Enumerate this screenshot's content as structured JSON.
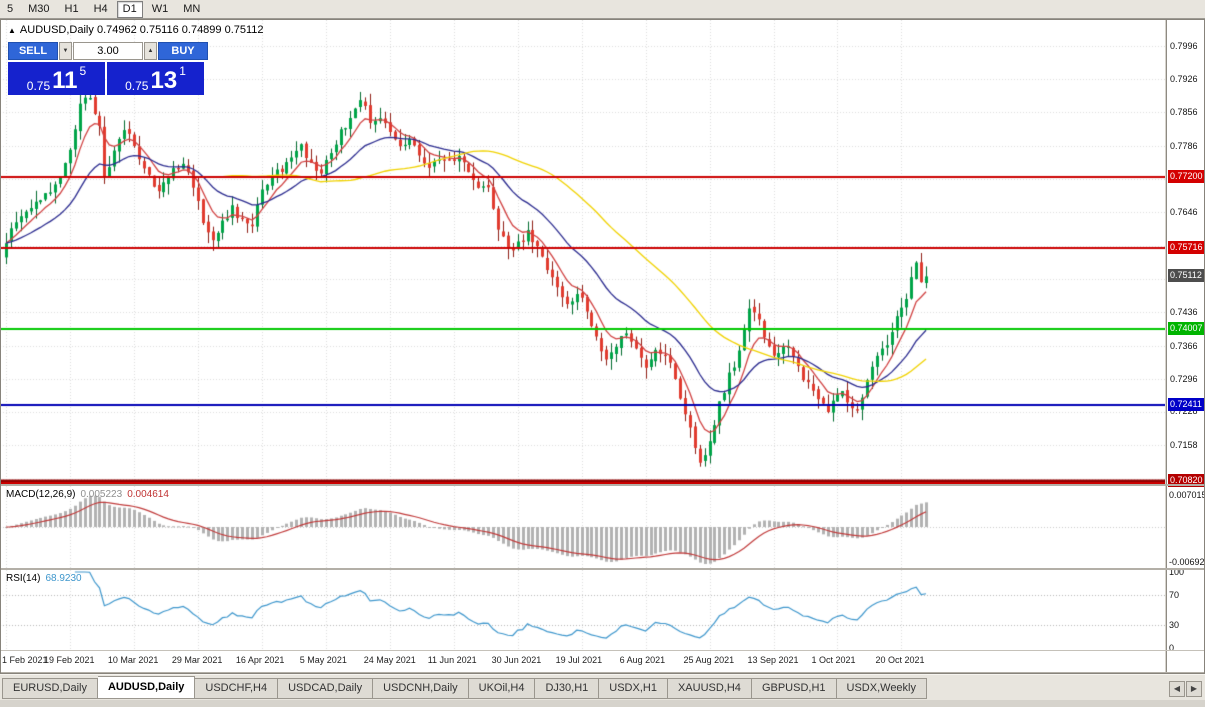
{
  "toolbar": {
    "timeframes": [
      {
        "label": "5",
        "active": false
      },
      {
        "label": "M30",
        "active": false
      },
      {
        "label": "H1",
        "active": false
      },
      {
        "label": "H4",
        "active": false
      },
      {
        "label": "D1",
        "active": true
      },
      {
        "label": "W1",
        "active": false
      },
      {
        "label": "MN",
        "active": false
      }
    ]
  },
  "chart_header": {
    "collapse_icon": "▲",
    "symbol_period": "AUDUSD,Daily",
    "ohlc": "0.74962 0.75116 0.74899 0.75112"
  },
  "one_click": {
    "sell_label": "SELL",
    "buy_label": "BUY",
    "volume": "3.00",
    "volume_down_icon": "▼",
    "volume_up_icon": "▲",
    "sell_price": {
      "prefix": "0.75",
      "big": "11",
      "sup": "5"
    },
    "buy_price": {
      "prefix": "0.75",
      "big": "13",
      "sup": "1"
    }
  },
  "indicator_labels": {
    "macd_name": "MACD(12,26,9)",
    "macd_main_value": "0.005223",
    "macd_signal_value": "0.004614",
    "macd_axis_top": "0.007015",
    "macd_axis_bottom": "-0.00692",
    "rsi_name": "RSI(14)",
    "rsi_value": "68.9230"
  },
  "rsi_axis": [
    {
      "label": "100",
      "value": 100
    },
    {
      "label": "70",
      "value": 70
    },
    {
      "label": "30",
      "value": 30
    },
    {
      "label": "0",
      "value": 0
    }
  ],
  "tabs": [
    {
      "label": "EURUSD,Daily",
      "active": false
    },
    {
      "label": "AUDUSD,Daily",
      "active": true
    },
    {
      "label": "USDCHF,H4",
      "active": false
    },
    {
      "label": "USDCAD,Daily",
      "active": false
    },
    {
      "label": "USDCNH,Daily",
      "active": false
    },
    {
      "label": "UKOil,H4",
      "active": false
    },
    {
      "label": "DJ30,H1",
      "active": false
    },
    {
      "label": "USDX,H1",
      "active": false
    },
    {
      "label": "XAUUSD,H4",
      "active": false
    },
    {
      "label": "GBPUSD,H1",
      "active": false
    },
    {
      "label": "USDX,Weekly",
      "active": false
    }
  ],
  "tab_scroll": {
    "left": "◀",
    "right": "▶"
  },
  "colors": {
    "up": "#00a448",
    "up_dark": "#006b2d",
    "down": "#e13b2f",
    "down_dark": "#8f1d14",
    "ma_fast": "#d04040",
    "ma_mid": "#2b2b8f",
    "ma_slow": "#f0d200",
    "grid": "#dcdcdc",
    "macd_hist": "#b2b2b2",
    "macd_signal": "#c03a3a",
    "rsi_line": "#3d96cc",
    "buy_sell_btn": "#2f66d8",
    "price_box": "#1522cd"
  },
  "chart_data": {
    "type": "candlestick",
    "symbol": "AUDUSD",
    "timeframe": "Daily",
    "title": "AUDUSD,Daily 0.74962 0.75116 0.74899 0.75112",
    "price_range": {
      "top": 0.805,
      "bottom": 0.7075
    },
    "candle_count": 188,
    "close_anchors": [
      [
        0,
        0.759
      ],
      [
        3,
        0.7645
      ],
      [
        6,
        0.7662
      ],
      [
        9,
        0.7685
      ],
      [
        12,
        0.7745
      ],
      [
        15,
        0.7868
      ],
      [
        17,
        0.7892
      ],
      [
        18,
        0.786
      ],
      [
        19,
        0.7828
      ],
      [
        20,
        0.7712
      ],
      [
        22,
        0.7772
      ],
      [
        24,
        0.7822
      ],
      [
        26,
        0.779
      ],
      [
        28,
        0.7735
      ],
      [
        31,
        0.7692
      ],
      [
        33,
        0.7722
      ],
      [
        36,
        0.7752
      ],
      [
        38,
        0.7702
      ],
      [
        40,
        0.7622
      ],
      [
        42,
        0.7592
      ],
      [
        44,
        0.7625
      ],
      [
        46,
        0.7652
      ],
      [
        48,
        0.7632
      ],
      [
        50,
        0.7612
      ],
      [
        52,
        0.7702
      ],
      [
        55,
        0.7732
      ],
      [
        58,
        0.7755
      ],
      [
        60,
        0.7782
      ],
      [
        62,
        0.7748
      ],
      [
        64,
        0.7722
      ],
      [
        66,
        0.7772
      ],
      [
        68,
        0.7818
      ],
      [
        70,
        0.7842
      ],
      [
        72,
        0.789
      ],
      [
        74,
        0.7832
      ],
      [
        76,
        0.7852
      ],
      [
        78,
        0.7812
      ],
      [
        80,
        0.7782
      ],
      [
        82,
        0.7802
      ],
      [
        84,
        0.7768
      ],
      [
        86,
        0.7742
      ],
      [
        88,
        0.7762
      ],
      [
        90,
        0.7748
      ],
      [
        92,
        0.7762
      ],
      [
        94,
        0.7738
      ],
      [
        96,
        0.7702
      ],
      [
        98,
        0.7692
      ],
      [
        100,
        0.7612
      ],
      [
        102,
        0.7562
      ],
      [
        104,
        0.7582
      ],
      [
        106,
        0.7602
      ],
      [
        108,
        0.7572
      ],
      [
        110,
        0.7522
      ],
      [
        112,
        0.7492
      ],
      [
        114,
        0.7452
      ],
      [
        116,
        0.7482
      ],
      [
        118,
        0.7442
      ],
      [
        120,
        0.7382
      ],
      [
        122,
        0.7342
      ],
      [
        124,
        0.7362
      ],
      [
        126,
        0.7396
      ],
      [
        128,
        0.7352
      ],
      [
        130,
        0.7312
      ],
      [
        132,
        0.7362
      ],
      [
        134,
        0.7342
      ],
      [
        136,
        0.7302
      ],
      [
        138,
        0.7222
      ],
      [
        140,
        0.7152
      ],
      [
        141,
        0.7112
      ],
      [
        143,
        0.7162
      ],
      [
        145,
        0.7242
      ],
      [
        147,
        0.7302
      ],
      [
        149,
        0.7352
      ],
      [
        151,
        0.7442
      ],
      [
        153,
        0.7422
      ],
      [
        155,
        0.7362
      ],
      [
        157,
        0.7342
      ],
      [
        159,
        0.7372
      ],
      [
        161,
        0.7322
      ],
      [
        163,
        0.7282
      ],
      [
        165,
        0.7252
      ],
      [
        167,
        0.7232
      ],
      [
        169,
        0.7272
      ],
      [
        171,
        0.7252
      ],
      [
        173,
        0.7232
      ],
      [
        175,
        0.7292
      ],
      [
        177,
        0.7342
      ],
      [
        179,
        0.7372
      ],
      [
        181,
        0.7432
      ],
      [
        183,
        0.7472
      ],
      [
        185,
        0.7532
      ],
      [
        186,
        0.7492
      ],
      [
        187,
        0.75112
      ]
    ],
    "x_labels": [
      {
        "label": "1 Feb 2021",
        "index": 0
      },
      {
        "label": "19 Feb 2021",
        "index": 13
      },
      {
        "label": "10 Mar 2021",
        "index": 26
      },
      {
        "label": "29 Mar 2021",
        "index": 39
      },
      {
        "label": "16 Apr 2021",
        "index": 52
      },
      {
        "label": "5 May 2021",
        "index": 65
      },
      {
        "label": "24 May 2021",
        "index": 78
      },
      {
        "label": "11 Jun 2021",
        "index": 91
      },
      {
        "label": "30 Jun 2021",
        "index": 104
      },
      {
        "label": "19 Jul 2021",
        "index": 117
      },
      {
        "label": "6 Aug 2021",
        "index": 130
      },
      {
        "label": "25 Aug 2021",
        "index": 143
      },
      {
        "label": "13 Sep 2021",
        "index": 156
      },
      {
        "label": "1 Oct 2021",
        "index": 169
      },
      {
        "label": "20 Oct 2021",
        "index": 182
      }
    ],
    "y_ticks": [
      {
        "label": "0.7996",
        "price": 0.7996
      },
      {
        "label": "0.7926",
        "price": 0.7926
      },
      {
        "label": "0.7856",
        "price": 0.7856
      },
      {
        "label": "0.7786",
        "price": 0.7786
      },
      {
        "label": "0.7646",
        "price": 0.7646
      },
      {
        "label": "0.7436",
        "price": 0.7436
      },
      {
        "label": "0.7366",
        "price": 0.7366
      },
      {
        "label": "0.7296",
        "price": 0.7296
      },
      {
        "label": "0.7228",
        "price": 0.7228
      },
      {
        "label": "0.7158",
        "price": 0.7158
      }
    ],
    "h_lines": [
      {
        "price": 0.772,
        "color": "#cc0000",
        "width": 2,
        "label": "0.77200",
        "badge": "#d40000"
      },
      {
        "price": 0.75716,
        "color": "#cc0000",
        "width": 2,
        "label": "0.75716",
        "badge": "#d40000"
      },
      {
        "price": 0.74007,
        "color": "#00c800",
        "width": 2,
        "label": "0.74007",
        "badge": "#00b400"
      },
      {
        "price": 0.72411,
        "color": "#0000b4",
        "width": 2,
        "label": "0.72411",
        "badge": "#0000c8"
      },
      {
        "price": 0.7082,
        "color": "#900000",
        "width": 3,
        "label": "0.70820",
        "badge": "#b40000"
      },
      {
        "price": 0.7076,
        "color": "#cc0000",
        "width": 2,
        "label": "",
        "badge": ""
      }
    ],
    "current_price": {
      "label": "0.75112",
      "price": 0.75112,
      "badge_color": "#4d4d4d"
    },
    "moving_averages": [
      {
        "name": "fast",
        "type": "ema",
        "period": 7,
        "color": "#d04040"
      },
      {
        "name": "mid",
        "type": "ema",
        "period": 21,
        "color": "#2b2b8f"
      },
      {
        "name": "slow",
        "type": "sma",
        "period": 45,
        "color": "#f0d200"
      }
    ],
    "indicators": {
      "macd": {
        "fast": 12,
        "slow": 26,
        "signal": 9,
        "main_value": 0.005223,
        "signal_value": 0.004614,
        "axis_top": 0.007015,
        "axis_bottom": -0.00692
      },
      "rsi": {
        "period": 14,
        "value": 68.923,
        "levels": [
          70,
          30
        ]
      }
    }
  }
}
